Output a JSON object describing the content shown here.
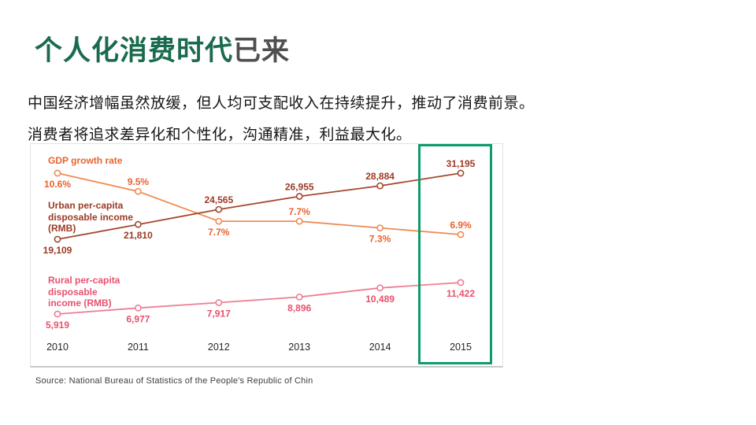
{
  "slide": {
    "title": {
      "highlight": "个人化消费时代",
      "rest": "已来"
    },
    "paragraph": [
      "中国经济增幅虽然放缓，但人均可支配收入在持续提升，推动了消费前景。",
      "消费者将追求差异化和个性化，沟通精准，利益最大化。"
    ],
    "source": "Source: National Bureau of Statistics of the People's Republic of Chin"
  },
  "colors": {
    "title_green": "#1A6B4D",
    "title_gray": "#4F4F51",
    "highlight_box_green": "#0F9C69",
    "gdp_orange": "#E8632E",
    "urban_dark_red": "#9C3A24",
    "rural_pink": "#E8506E",
    "axis_text": "#262626"
  },
  "chart_data": {
    "type": "line",
    "title": "",
    "xlabel": "",
    "ylabel": "",
    "grid": false,
    "legend_position": "inline-left",
    "categories": [
      "2010",
      "2011",
      "2012",
      "2013",
      "2014",
      "2015"
    ],
    "series": [
      {
        "name": "GDP growth rate",
        "name_lines": [
          "GDP growth rate"
        ],
        "unit": "%",
        "values": [
          10.6,
          9.5,
          7.7,
          7.7,
          7.3,
          6.9
        ],
        "labels": [
          "10.6%",
          "9.5%",
          "7.7%",
          "7.7%",
          "7.3%",
          "6.9%"
        ],
        "color": "#E8632E",
        "line_color": "#F08B54"
      },
      {
        "name": "Urban per-capita disposable income (RMB)",
        "name_lines": [
          "Urban per-capita",
          "disposable income",
          "(RMB)"
        ],
        "unit": "RMB",
        "values": [
          19109,
          21810,
          24565,
          26955,
          28884,
          31195
        ],
        "labels": [
          "19,109",
          "21,810",
          "24,565",
          "26,955",
          "28,884",
          "31,195"
        ],
        "color": "#9C3A24",
        "line_color": "#A3492D"
      },
      {
        "name": "Rural per-capita disposable income (RMB)",
        "name_lines": [
          "Rural per-capita",
          "disposable",
          "income (RMB)"
        ],
        "unit": "RMB",
        "values": [
          5919,
          6977,
          7917,
          8896,
          10489,
          11422
        ],
        "labels": [
          "5,919",
          "6,977",
          "7,917",
          "8,896",
          "10,489",
          "11,422"
        ],
        "color": "#E8506E",
        "line_color": "#EE7E95"
      }
    ],
    "highlight": {
      "category": "2015",
      "box_color": "#0F9C69"
    }
  }
}
